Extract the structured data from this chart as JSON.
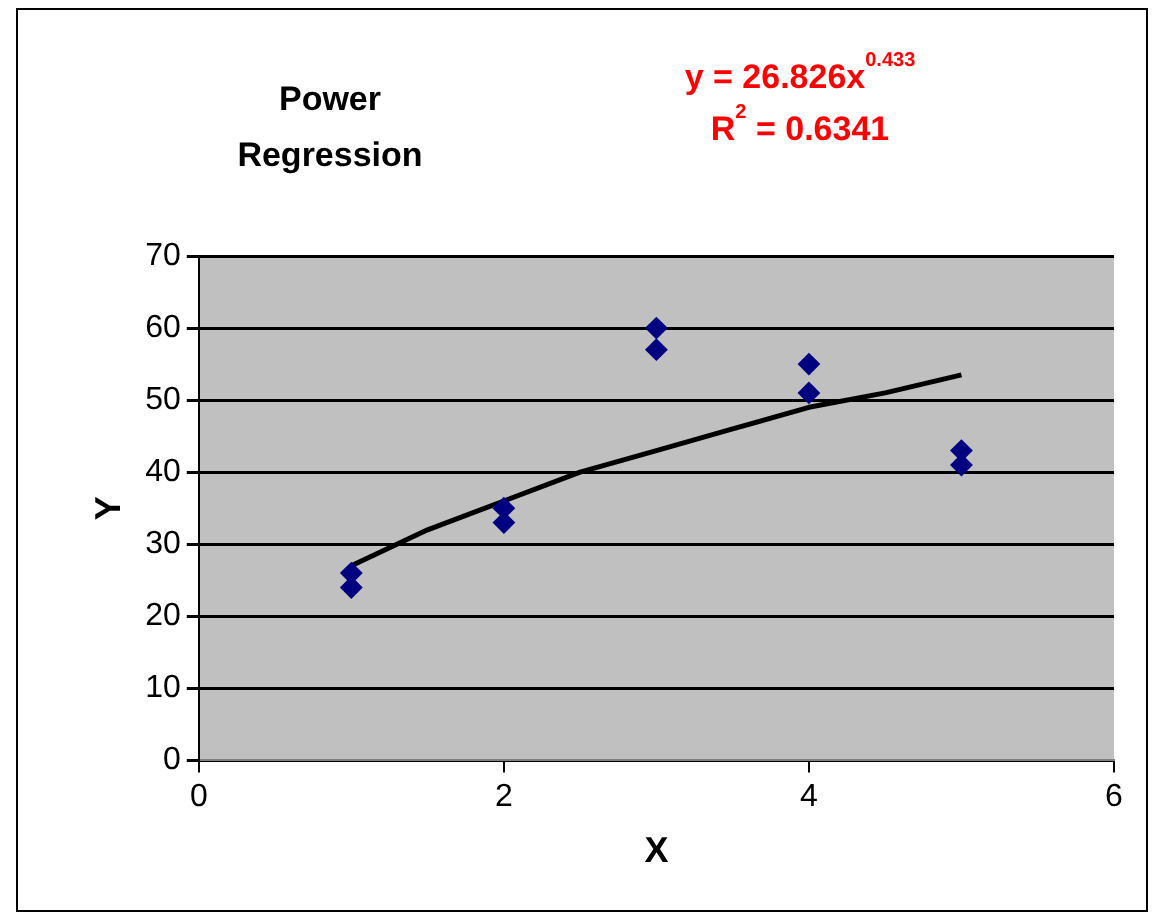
{
  "chart_data": {
    "type": "scatter",
    "title": "Power Regression",
    "xlabel": "X",
    "ylabel": "Y",
    "annotations": [
      "y = 26.826x$^{0.433}$",
      "R$^{2}$ = 0.6341"
    ],
    "series": [
      {
        "marker": "diamond",
        "color": "#000080",
        "x": [
          1,
          1,
          2,
          2,
          3,
          3,
          4,
          4,
          5,
          5
        ],
        "values": [
          26,
          24,
          35,
          33,
          60,
          57,
          55,
          51,
          43,
          41
        ]
      },
      {
        "type": "line",
        "marker": "none",
        "color": "#000000",
        "x": [
          1,
          1.5,
          2,
          2.5,
          3,
          3.5,
          4,
          4.5,
          5
        ],
        "values": [
          27,
          32,
          36,
          40,
          43,
          46,
          49,
          51,
          53.5
        ]
      }
    ],
    "xlim": [
      0,
      6
    ],
    "xticks": [
      0,
      2,
      4,
      6
    ],
    "ylim": [
      0,
      70
    ],
    "yticks": [
      0,
      10,
      20,
      30,
      40,
      50,
      60,
      70
    ],
    "grid": "y",
    "legend": false
  }
}
